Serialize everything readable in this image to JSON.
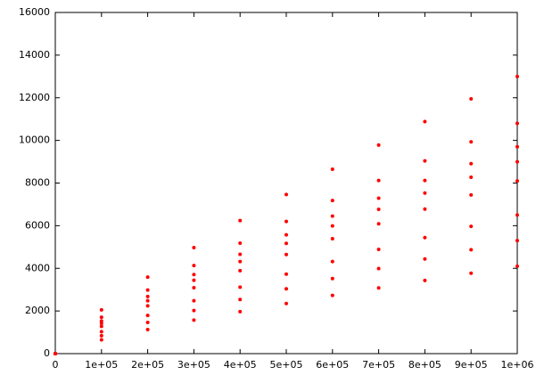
{
  "chart_data": {
    "type": "scatter",
    "x": [
      0,
      100000,
      200000,
      300000,
      400000,
      500000,
      600000,
      700000,
      800000,
      900000,
      1000000
    ],
    "series": [
      {
        "color": "#ff0000",
        "values": [
          0,
          2050,
          3590,
          4970,
          6240,
          7460,
          8650,
          9780,
          10880,
          11950,
          13000
        ]
      },
      {
        "color": "#ff0000",
        "values": [
          0,
          1710,
          2980,
          4130,
          5180,
          6200,
          7180,
          8120,
          9040,
          9930,
          10800
        ]
      },
      {
        "color": "#ff0000",
        "values": [
          0,
          1530,
          2680,
          3710,
          4660,
          5570,
          6450,
          7290,
          8120,
          8910,
          9700
        ]
      },
      {
        "color": "#ff0000",
        "values": [
          0,
          1420,
          2480,
          3440,
          4320,
          5170,
          5990,
          6770,
          7530,
          8270,
          9000
        ]
      },
      {
        "color": "#ff0000",
        "values": [
          0,
          1280,
          2240,
          3090,
          3890,
          4650,
          5390,
          6090,
          6780,
          7440,
          8100
        ]
      },
      {
        "color": "#ff0000",
        "values": [
          0,
          1030,
          1790,
          2480,
          3120,
          3730,
          4320,
          4890,
          5440,
          5970,
          6500
        ]
      },
      {
        "color": "#ff0000",
        "values": [
          0,
          840,
          1460,
          2020,
          2540,
          3040,
          3520,
          3990,
          4440,
          4870,
          5300
        ]
      },
      {
        "color": "#ff0000",
        "values": [
          0,
          650,
          1130,
          1570,
          1970,
          2350,
          2730,
          3080,
          3430,
          3770,
          4100
        ]
      }
    ],
    "xlim": [
      0,
      1000000
    ],
    "xticks": [
      0,
      {
        "value": 100000,
        "label": "1e+05"
      },
      {
        "value": 200000,
        "label": "2e+05"
      },
      {
        "value": 300000,
        "label": "3e+05"
      },
      {
        "value": 400000,
        "label": "4e+05"
      },
      {
        "value": 500000,
        "label": "5e+05"
      },
      {
        "value": 600000,
        "label": "6e+05"
      },
      {
        "value": 700000,
        "label": "7e+05"
      },
      {
        "value": 800000,
        "label": "8e+05"
      },
      {
        "value": 900000,
        "label": "9e+05"
      },
      {
        "value": 1000000,
        "label": "1e+06"
      }
    ],
    "ylim": [
      0,
      16000
    ],
    "yticks": [
      0,
      2000,
      4000,
      6000,
      8000,
      10000,
      12000,
      14000,
      16000
    ]
  }
}
